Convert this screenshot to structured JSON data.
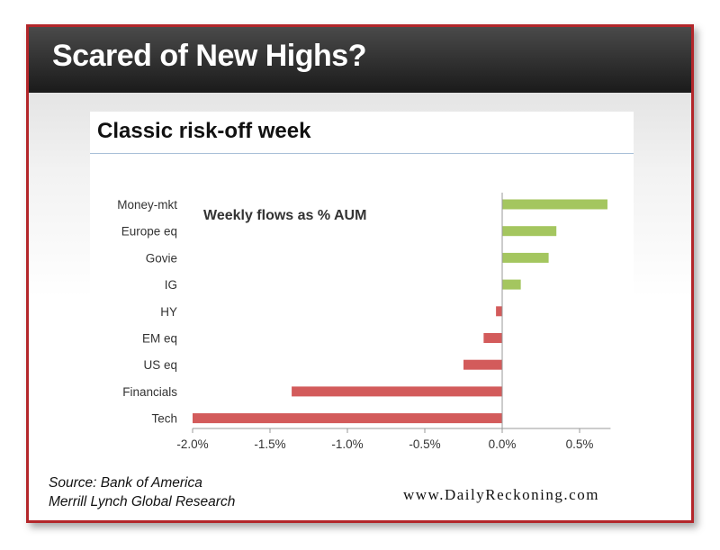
{
  "header": {
    "title": "Scared of New Highs?"
  },
  "chart_data": {
    "type": "bar",
    "orientation": "horizontal",
    "title": "Classic risk-off week",
    "annotation": "Weekly flows as % AUM",
    "categories": [
      "Money-mkt",
      "Europe eq",
      "Govie",
      "IG",
      "HY",
      "EM eq",
      "US eq",
      "Financials",
      "Tech"
    ],
    "values": [
      0.68,
      0.35,
      0.3,
      0.12,
      -0.04,
      -0.12,
      -0.25,
      -1.36,
      -2.0
    ],
    "xlim": [
      -2.0,
      0.7
    ],
    "xticks": [
      -2.0,
      -1.5,
      -1.0,
      -0.5,
      0.0,
      0.5
    ],
    "xtick_labels": [
      "-2.0%",
      "-1.5%",
      "-1.0%",
      "-0.5%",
      "0.0%",
      "0.5%"
    ],
    "positive_color": "#a4c65f",
    "negative_color": "#d35b5b",
    "grid": false
  },
  "source": {
    "line1": "Source: Bank of America",
    "line2": "Merrill Lynch Global Research"
  },
  "website": "www.DailyReckoning.com",
  "colors": {
    "frame_border": "#b3262a",
    "header_bg": "#2a2a2a"
  }
}
